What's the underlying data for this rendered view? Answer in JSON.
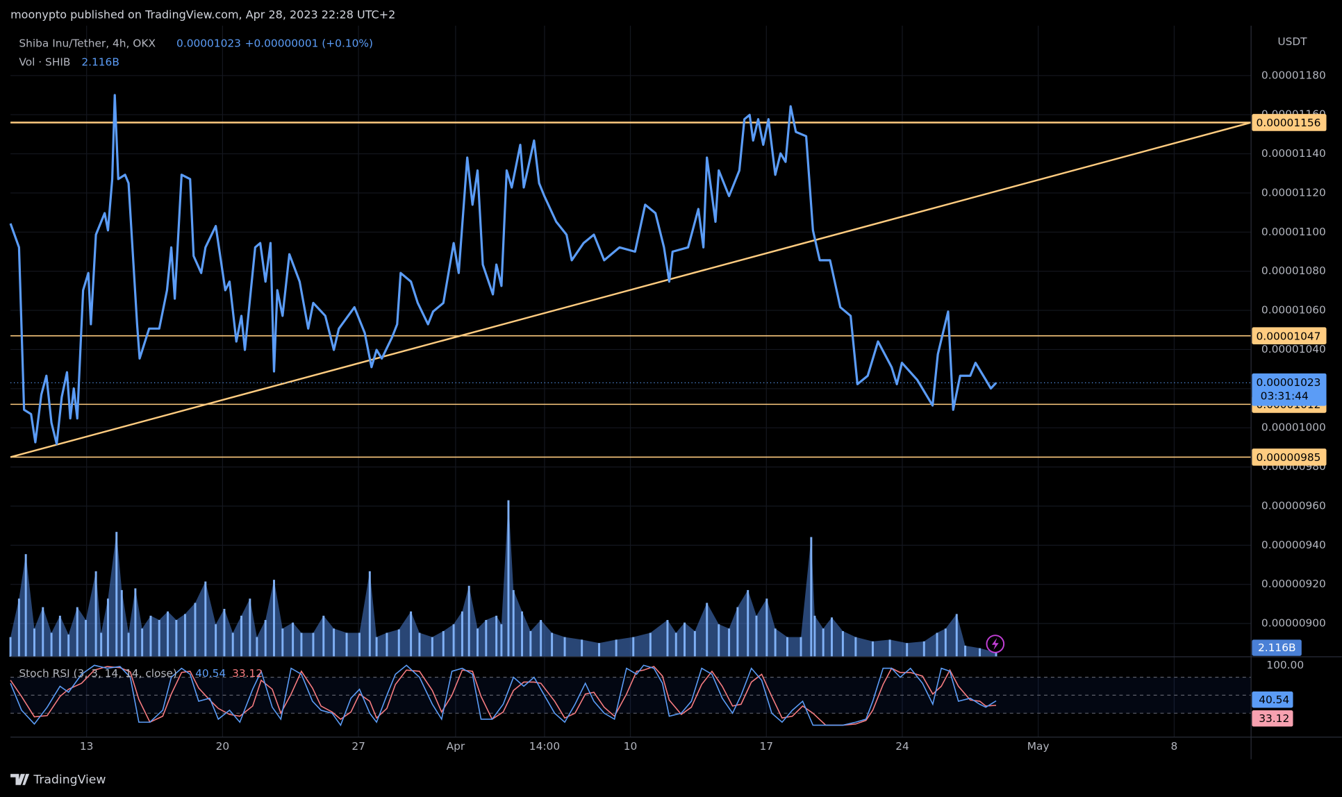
{
  "header": {
    "published": "moonypto published on TradingView.com, Apr 28, 2023 22:28 UTC+2",
    "brand": "TradingView"
  },
  "chart_data": {
    "type": "line",
    "title": "Shiba Inu/Tether, 4h, OKX",
    "last_price": 1.023e-05,
    "change": "+0.00000001 (+0.10%)",
    "countdown": "03:31:44",
    "currency": "USDT",
    "color": "#5b9cf6",
    "grid": true,
    "xlim": [
      9.08,
      72.96
    ],
    "ylim": [
      8.83e-06,
      1.202e-05
    ],
    "xticks": [
      13,
      20,
      27,
      {
        "value": 32,
        "label": "Apr"
      },
      {
        "value": 36.58,
        "label": "14:00"
      },
      {
        "value": 41,
        "label": "10"
      },
      {
        "value": 48,
        "label": "17"
      },
      {
        "value": 55,
        "label": "24"
      },
      {
        "value": 62,
        "label": "May"
      },
      {
        "value": 69,
        "label": "8"
      }
    ],
    "yticks": [
      {
        "value": 1.18e-05,
        "label": "0.00001180"
      },
      {
        "value": 1.16e-05,
        "label": "0.00001160"
      },
      {
        "value": 1.14e-05,
        "label": "0.00001140"
      },
      {
        "value": 1.12e-05,
        "label": "0.00001120"
      },
      {
        "value": 1.1e-05,
        "label": "0.00001100"
      },
      {
        "value": 1.08e-05,
        "label": "0.00001080"
      },
      {
        "value": 1.06e-05,
        "label": "0.00001060"
      },
      {
        "value": 1.04e-05,
        "label": "0.00001040"
      },
      {
        "value": 1.02e-05,
        "label": "0.00001020"
      },
      {
        "value": 1e-05,
        "label": "0.00001000"
      },
      {
        "value": 9.8e-06,
        "label": "0.00000980"
      },
      {
        "value": 9.6e-06,
        "label": "0.00000960"
      },
      {
        "value": 9.4e-06,
        "label": "0.00000940"
      },
      {
        "value": 9.2e-06,
        "label": "0.00000920"
      },
      {
        "value": 9e-06,
        "label": "0.00000900"
      }
    ],
    "levels": [
      1.156e-05,
      1.047e-05,
      1.012e-05,
      9.85e-06
    ],
    "level_color": "#ffcc80",
    "trendline": {
      "x": [
        9.08,
        72.96
      ],
      "values": [
        9.85e-06,
        1.156e-05
      ]
    },
    "x": [
      9.08,
      9.52,
      9.78,
      10.14,
      10.36,
      10.67,
      10.93,
      11.19,
      11.46,
      11.72,
      11.99,
      12.16,
      12.34,
      12.52,
      12.82,
      13.09,
      13.22,
      13.48,
      13.93,
      14.1,
      14.32,
      14.45,
      14.63,
      14.98,
      15.16,
      15.6,
      15.73,
      16.22,
      16.74,
      17.14,
      17.36,
      17.54,
      17.89,
      18.33,
      18.51,
      18.9,
      19.12,
      19.65,
      20.14,
      20.36,
      20.71,
      20.97,
      21.15,
      21.68,
      21.94,
      22.21,
      22.47,
      22.65,
      22.82,
      23.09,
      23.44,
      23.97,
      24.41,
      24.67,
      25.29,
      25.73,
      25.99,
      26.79,
      27.32,
      27.67,
      27.93,
      28.2,
      28.73,
      28.99,
      29.17,
      29.7,
      30.05,
      30.58,
      30.84,
      31.37,
      31.9,
      32.16,
      32.6,
      32.87,
      33.13,
      33.4,
      33.92,
      34.1,
      34.36,
      34.63,
      34.89,
      35.33,
      35.51,
      36.04,
      36.3,
      36.57,
      37.18,
      37.71,
      37.98,
      38.59,
      39.12,
      39.65,
      40.44,
      41.24,
      41.76,
      42.29,
      42.73,
      43.0,
      43.17,
      43.97,
      44.5,
      44.76,
      44.94,
      45.38,
      45.55,
      46.08,
      46.61,
      46.87,
      47.14,
      47.32,
      47.58,
      47.84,
      48.11,
      48.46,
      48.73,
      48.99,
      49.25,
      49.52,
      50.05,
      50.4,
      50.75,
      51.28,
      51.81,
      52.34,
      52.69,
      53.22,
      53.75,
      54.45,
      54.72,
      54.98,
      55.77,
      56.56,
      56.83,
      57.36,
      57.62,
      57.98,
      58.5,
      58.77,
      59.3,
      59.56,
      59.83
    ],
    "values": [
      1.1044e-05,
      1.0922e-05,
      1.0092e-05,
      1.007e-05,
      9.926e-06,
      1.017e-05,
      1.0266e-05,
      1.0026e-05,
      9.917e-06,
      1.0157e-05,
      1.0284e-05,
      1.0048e-05,
      1.0201e-05,
      1.0048e-05,
      1.0703e-05,
      1.0791e-05,
      1.0529e-05,
      1.0987e-05,
      1.1097e-05,
      1.1009e-05,
      1.1271e-05,
      1.17e-05,
      1.1271e-05,
      1.1293e-05,
      1.125e-05,
      1.0529e-05,
      1.0354e-05,
      1.0507e-05,
      1.0507e-05,
      1.0703e-05,
      1.0922e-05,
      1.066e-05,
      1.1293e-05,
      1.1271e-05,
      1.0878e-05,
      1.0791e-05,
      1.0922e-05,
      1.1031e-05,
      1.0703e-05,
      1.0747e-05,
      1.0441e-05,
      1.0572e-05,
      1.0398e-05,
      1.0922e-05,
      1.0944e-05,
      1.0747e-05,
      1.0944e-05,
      1.0288e-05,
      1.0703e-05,
      1.0572e-05,
      1.0887e-05,
      1.0747e-05,
      1.0507e-05,
      1.0638e-05,
      1.0572e-05,
      1.0398e-05,
      1.0507e-05,
      1.0616e-05,
      1.0485e-05,
      1.031e-05,
      1.0398e-05,
      1.0354e-05,
      1.0463e-05,
      1.0529e-05,
      1.0791e-05,
      1.0747e-05,
      1.0638e-05,
      1.0529e-05,
      1.0594e-05,
      1.0638e-05,
      1.0944e-05,
      1.0791e-05,
      1.1381e-05,
      1.114e-05,
      1.1315e-05,
      1.0834e-05,
      1.0682e-05,
      1.0834e-05,
      1.0725e-05,
      1.1315e-05,
      1.1228e-05,
      1.1446e-05,
      1.1228e-05,
      1.1468e-05,
      1.125e-05,
      1.1184e-05,
      1.1053e-05,
      1.0987e-05,
      1.0856e-05,
      1.0944e-05,
      1.0987e-05,
      1.0856e-05,
      1.0922e-05,
      1.09e-05,
      1.114e-05,
      1.1097e-05,
      1.0922e-05,
      1.0747e-05,
      1.09e-05,
      1.0922e-05,
      1.1118e-05,
      1.0922e-05,
      1.1381e-05,
      1.1053e-05,
      1.1315e-05,
      1.1184e-05,
      1.1315e-05,
      1.1577e-05,
      1.1599e-05,
      1.1468e-05,
      1.1577e-05,
      1.1446e-05,
      1.1577e-05,
      1.1293e-05,
      1.1402e-05,
      1.1359e-05,
      1.1643e-05,
      1.1512e-05,
      1.149e-05,
      1.1009e-05,
      1.0856e-05,
      1.0856e-05,
      1.0616e-05,
      1.0572e-05,
      1.0223e-05,
      1.0266e-05,
      1.0441e-05,
      1.031e-05,
      1.0223e-05,
      1.0332e-05,
      1.0245e-05,
      1.0114e-05,
      1.0376e-05,
      1.0594e-05,
      1.0092e-05,
      1.0266e-05,
      1.0266e-05,
      1.0332e-05,
      1.0245e-05,
      1.0201e-05,
      1.023e-05
    ],
    "volume": {
      "title": "Vol · SHIB",
      "last_label": "2.116B",
      "color": "#4a80d6",
      "x": [
        9.08,
        9.52,
        9.87,
        10.31,
        10.75,
        11.19,
        11.63,
        12.07,
        12.52,
        12.96,
        13.48,
        13.75,
        14.1,
        14.54,
        14.81,
        15.16,
        15.51,
        15.86,
        16.3,
        16.74,
        17.18,
        17.62,
        18.07,
        18.59,
        19.12,
        19.65,
        20.09,
        20.53,
        20.97,
        21.41,
        21.77,
        22.21,
        22.65,
        23.09,
        23.62,
        24.06,
        24.67,
        25.2,
        25.73,
        26.39,
        27.05,
        27.58,
        27.93,
        28.46,
        29.08,
        29.7,
        30.14,
        30.8,
        31.37,
        31.9,
        32.34,
        32.69,
        33.13,
        33.57,
        34.1,
        34.36,
        34.72,
        34.98,
        35.42,
        35.86,
        36.39,
        36.96,
        37.62,
        38.5,
        39.39,
        40.27,
        41.15,
        42.03,
        42.91,
        43.35,
        43.79,
        44.32,
        44.94,
        45.55,
        46.08,
        46.52,
        47.05,
        47.49,
        48.02,
        48.46,
        49.08,
        49.78,
        50.31,
        50.49,
        50.93,
        51.37,
        51.94,
        52.6,
        53.48,
        54.36,
        55.24,
        56.12,
        56.79,
        57.23,
        57.8,
        58.24,
        58.99,
        59.83
      ],
      "values": [
        9.66,
        28.56,
        50.4,
        13.86,
        24.36,
        11.76,
        20.16,
        10.92,
        24.36,
        18.06,
        42.0,
        11.76,
        28.56,
        61.32,
        32.76,
        11.76,
        33.6,
        13.86,
        20.16,
        18.06,
        22.26,
        18.06,
        21.0,
        26.46,
        36.96,
        15.96,
        23.52,
        11.76,
        20.16,
        28.56,
        9.66,
        18.06,
        37.8,
        13.86,
        16.8,
        11.76,
        11.76,
        20.16,
        13.86,
        11.76,
        11.76,
        42.0,
        9.66,
        11.76,
        13.44,
        22.26,
        11.76,
        9.66,
        12.6,
        15.96,
        22.26,
        34.86,
        13.86,
        18.06,
        20.16,
        15.96,
        76.86,
        32.76,
        22.26,
        12.6,
        18.06,
        11.76,
        9.66,
        8.4,
        6.72,
        8.4,
        9.66,
        11.76,
        18.06,
        11.76,
        16.8,
        12.6,
        26.46,
        15.96,
        13.86,
        24.36,
        32.76,
        20.16,
        28.56,
        13.86,
        9.66,
        9.66,
        58.8,
        20.16,
        13.86,
        19.32,
        12.6,
        9.66,
        7.56,
        8.4,
        6.72,
        7.56,
        11.76,
        13.86,
        21.0,
        5.46,
        4.2,
        2.116
      ]
    },
    "stoch": {
      "title": "Stoch RSI (3, 3, 14, 14, close)",
      "ylim": [
        -17.1,
        111.4
      ],
      "yticks": [
        {
          "value": 100,
          "label": "100.00"
        }
      ],
      "levels": [
        20,
        50,
        80
      ],
      "x": [
        9.08,
        9.65,
        10.31,
        10.97,
        11.63,
        12.07,
        12.74,
        13.4,
        14.06,
        14.72,
        15.25,
        15.69,
        16.26,
        16.92,
        17.36,
        17.89,
        18.33,
        18.77,
        19.34,
        19.78,
        20.36,
        20.89,
        21.55,
        21.99,
        22.56,
        23.0,
        23.53,
        24.06,
        24.63,
        25.07,
        25.64,
        26.08,
        26.61,
        27.05,
        27.58,
        27.93,
        28.46,
        28.9,
        29.47,
        30.14,
        30.8,
        31.28,
        31.81,
        32.34,
        32.87,
        33.31,
        33.88,
        34.45,
        34.98,
        35.51,
        36.04,
        36.39,
        37.1,
        37.62,
        38.15,
        38.68,
        39.12,
        39.65,
        40.18,
        40.8,
        41.32,
        41.68,
        42.21,
        42.65,
        43.0,
        43.62,
        44.14,
        44.67,
        45.2,
        45.73,
        46.26,
        46.7,
        47.23,
        47.76,
        48.28,
        48.81,
        49.34,
        49.87,
        50.4,
        51.06,
        51.94,
        52.6,
        53.13,
        53.48,
        54.01,
        54.45,
        54.89,
        55.42,
        56.04,
        56.57,
        57.01,
        57.45,
        57.89,
        58.5,
        58.99,
        59.3,
        59.83
      ],
      "k": {
        "color": "#5b9cf6",
        "values": [
          70,
          25,
          2,
          30,
          65,
          55,
          85,
          100,
          95,
          98,
          80,
          5,
          5,
          25,
          80,
          95,
          85,
          40,
          45,
          10,
          25,
          5,
          60,
          90,
          30,
          10,
          95,
          85,
          40,
          25,
          20,
          0,
          45,
          60,
          20,
          5,
          50,
          85,
          100,
          80,
          35,
          10,
          90,
          95,
          85,
          10,
          10,
          35,
          80,
          65,
          80,
          60,
          20,
          5,
          35,
          70,
          40,
          20,
          10,
          95,
          85,
          100,
          95,
          70,
          15,
          20,
          40,
          95,
          85,
          45,
          20,
          50,
          95,
          75,
          20,
          5,
          25,
          40,
          0,
          0,
          0,
          5,
          10,
          40,
          95,
          95,
          80,
          95,
          70,
          35,
          95,
          90,
          40,
          45,
          35,
          30,
          40.54
        ]
      },
      "d": {
        "color": "#f77c80",
        "values": [
          75,
          48,
          14,
          16,
          48,
          60,
          70,
          92,
          98,
          96,
          89,
          43,
          5,
          15,
          52,
          88,
          90,
          62,
          42,
          28,
          18,
          15,
          32,
          75,
          60,
          20,
          52,
          90,
          62,
          32,
          22,
          10,
          22,
          52,
          40,
          12,
          28,
          68,
          92,
          90,
          58,
          22,
          50,
          92,
          90,
          48,
          10,
          22,
          58,
          72,
          72,
          70,
          40,
          12,
          20,
          52,
          55,
          30,
          15,
          52,
          90,
          92,
          98,
          82,
          42,
          18,
          30,
          68,
          90,
          65,
          32,
          35,
          72,
          85,
          48,
          12,
          15,
          32,
          20,
          0,
          0,
          2,
          8,
          25,
          68,
          95,
          88,
          88,
          82,
          52,
          65,
          92,
          65,
          42,
          40,
          32,
          33.12
        ]
      }
    }
  }
}
